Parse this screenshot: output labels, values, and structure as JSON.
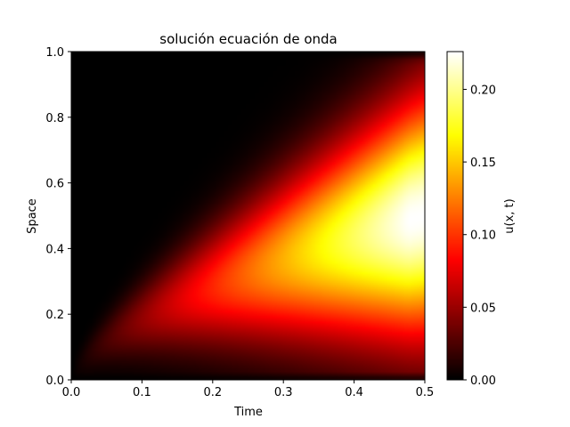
{
  "chart_data": {
    "type": "heatmap",
    "title": "solución ecuación de onda",
    "xlabel": "Time",
    "ylabel": "Space",
    "xlim": [
      0.0,
      0.5
    ],
    "ylim": [
      0.0,
      1.0
    ],
    "x_ticks": [
      "0.0",
      "0.1",
      "0.2",
      "0.3",
      "0.4",
      "0.5"
    ],
    "y_ticks": [
      "0.0",
      "0.2",
      "0.4",
      "0.6",
      "0.8",
      "1.0"
    ],
    "colormap": "hot",
    "colorbar": {
      "label": "u(x, t)",
      "range": [
        0.0,
        0.226
      ],
      "ticks": [
        "0.00",
        "0.05",
        "0.10",
        "0.15",
        "0.20"
      ]
    },
    "approx_peak": {
      "t": 0.5,
      "x": 0.48,
      "u": 0.226
    },
    "grid": false
  }
}
